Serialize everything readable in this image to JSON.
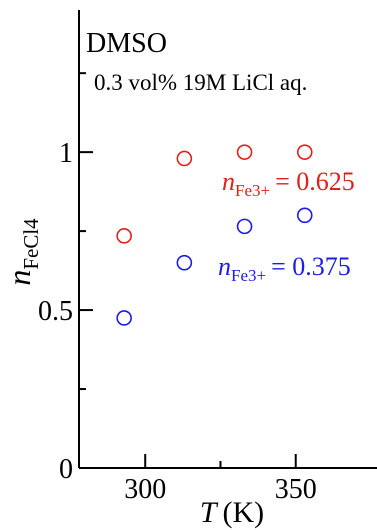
{
  "chart_data": {
    "type": "scatter",
    "title": "",
    "xlabel_var": "T",
    "xlabel_unit": "(K)",
    "ylabel_var": "n",
    "ylabel_sub": "FeCl4",
    "xlim": [
      278,
      377
    ],
    "ylim": [
      0,
      1.45
    ],
    "x_ticks": [
      300,
      350
    ],
    "x_minor_ticks": [
      325
    ],
    "y_ticks": [
      0,
      0.5,
      1
    ],
    "y_tick_labels": [
      "0",
      "0.5",
      "1"
    ],
    "y_minor_ticks": [
      0.25,
      0.75,
      1.25
    ],
    "grid": false,
    "annotations": {
      "solvent": "DMSO",
      "conditions": "0.3 vol% 19M LiCl aq."
    },
    "series": [
      {
        "label_var": "n",
        "label_sub": "Fe3+",
        "label_value": "= 0.625",
        "color": "#e0201c",
        "marker": "open-circle",
        "points": [
          {
            "x": 293,
            "y": 0.735
          },
          {
            "x": 313,
            "y": 0.98
          },
          {
            "x": 333,
            "y": 1.0
          },
          {
            "x": 353,
            "y": 1.0
          }
        ]
      },
      {
        "label_var": "n",
        "label_sub": "Fe3+",
        "label_value": "= 0.375",
        "color": "#1c1ce6",
        "marker": "open-circle",
        "points": [
          {
            "x": 293,
            "y": 0.475
          },
          {
            "x": 313,
            "y": 0.65
          },
          {
            "x": 333,
            "y": 0.765
          },
          {
            "x": 353,
            "y": 0.8
          }
        ]
      }
    ]
  }
}
